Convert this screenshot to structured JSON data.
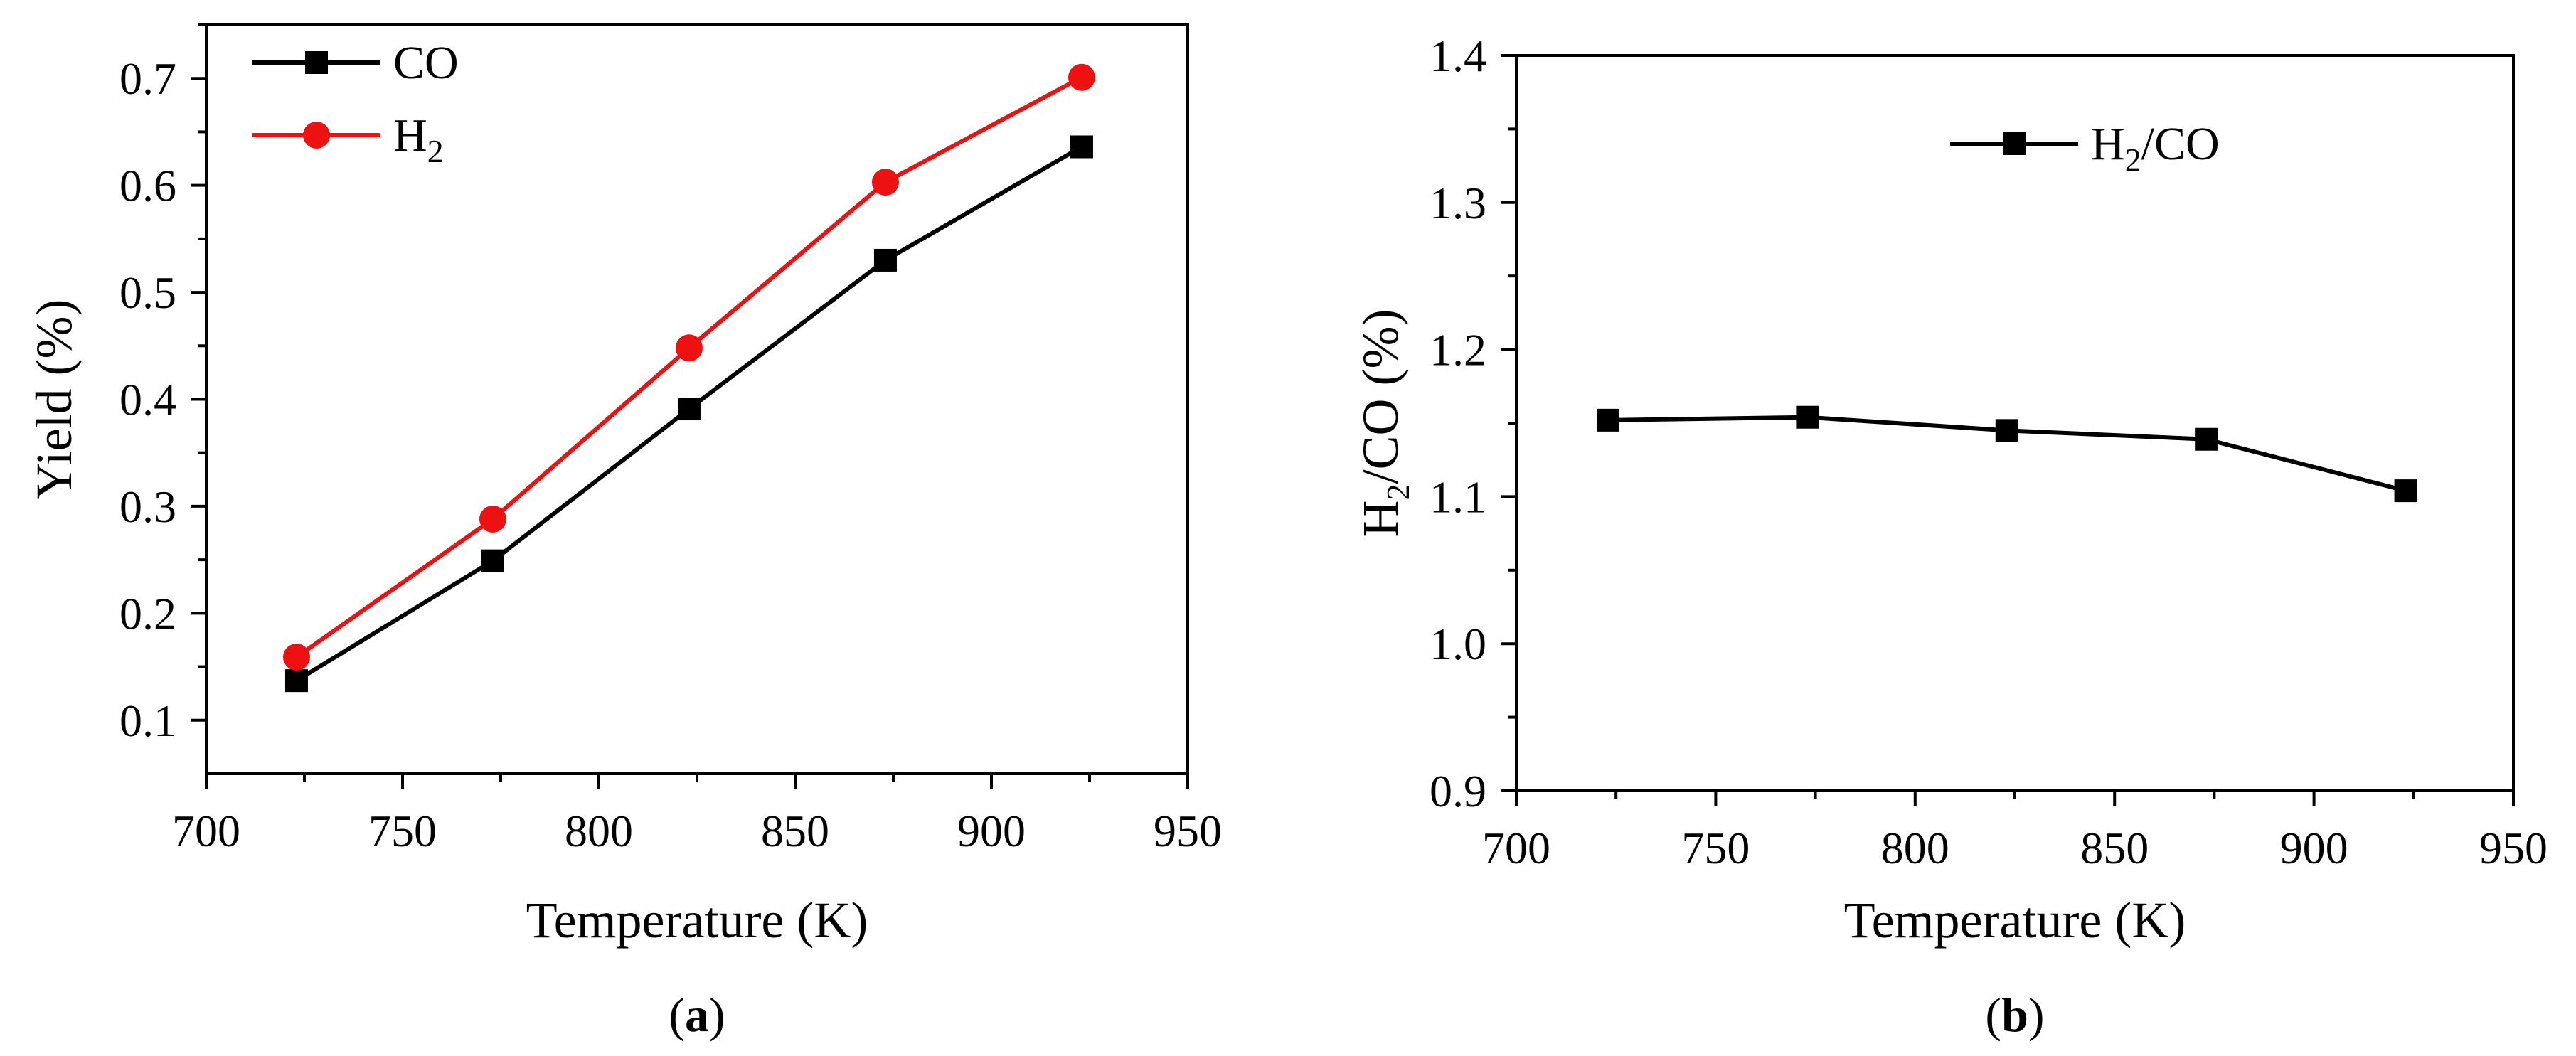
{
  "chart_data": [
    {
      "id": "a",
      "type": "line",
      "panel_label": "a",
      "xlabel": "Temperature (K)",
      "ylabel": "Yield (%)",
      "xlim": [
        700,
        950
      ],
      "ylim": [
        0.05,
        0.75
      ],
      "xticks": [
        700,
        750,
        800,
        850,
        900,
        950
      ],
      "yticks": [
        0.1,
        0.2,
        0.3,
        0.4,
        0.5,
        0.6,
        0.7
      ],
      "x": [
        723,
        773,
        823,
        873,
        923
      ],
      "series": [
        {
          "name": "CO",
          "name_main": "CO",
          "name_sub": "",
          "color": "#000000",
          "marker": "square",
          "values": [
            0.137,
            0.249,
            0.391,
            0.53,
            0.636
          ]
        },
        {
          "name": "H2",
          "name_main": "H",
          "name_sub": "2",
          "color": "#ee1111",
          "marker": "circle",
          "values": [
            0.159,
            0.288,
            0.448,
            0.603,
            0.701
          ]
        }
      ],
      "legend": "top-left"
    },
    {
      "id": "b",
      "type": "line",
      "panel_label": "b",
      "xlabel": "Temperature (K)",
      "ylabel": "H2/CO (%)",
      "ylabel_parts": [
        "H",
        "2",
        "/CO (%)"
      ],
      "xlim": [
        700,
        950
      ],
      "ylim": [
        0.9,
        1.4
      ],
      "xticks": [
        700,
        750,
        800,
        850,
        900,
        950
      ],
      "yticks": [
        0.9,
        1.0,
        1.1,
        1.2,
        1.3,
        1.4
      ],
      "x": [
        723,
        773,
        823,
        873,
        923
      ],
      "series": [
        {
          "name": "H2/CO",
          "name_main": "H",
          "name_sub": "2",
          "name_rest": "/CO",
          "color": "#000000",
          "marker": "square",
          "values": [
            1.152,
            1.154,
            1.145,
            1.139,
            1.104
          ]
        }
      ],
      "legend": "top-right"
    }
  ]
}
